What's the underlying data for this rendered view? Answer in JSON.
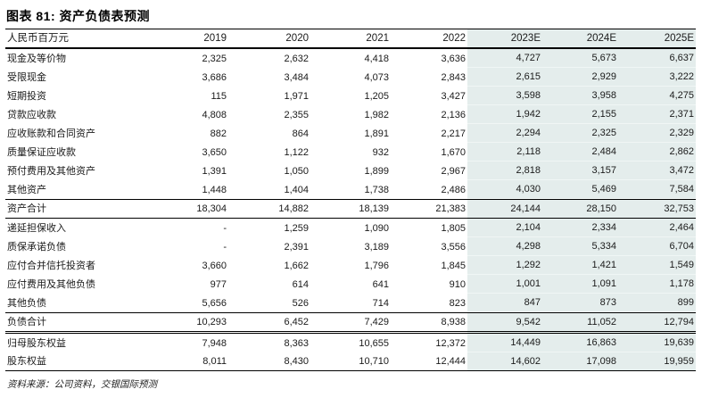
{
  "page": {
    "title": "图表 81: 资产负债表预测",
    "source": "资料来源：公司资料，交银国际预测"
  },
  "colors": {
    "forecast_highlight": "#e4edec",
    "text": "#1a1a1a",
    "rule": "#000000"
  },
  "chart_data": {
    "type": "table",
    "title": "图表 81: 资产负债表预测",
    "unit_label": "人民币百万元",
    "columns": [
      "2019",
      "2020",
      "2021",
      "2022",
      "2023E",
      "2024E",
      "2025E"
    ],
    "forecast_columns": [
      "2023E",
      "2024E",
      "2025E"
    ],
    "rows": [
      {
        "label": "现金及等价物",
        "kind": "item",
        "values": [
          "2,325",
          "2,632",
          "4,418",
          "3,636",
          "4,727",
          "5,673",
          "6,637"
        ]
      },
      {
        "label": "受限现金",
        "kind": "item",
        "values": [
          "3,686",
          "3,484",
          "4,073",
          "2,843",
          "2,615",
          "2,929",
          "3,222"
        ]
      },
      {
        "label": "短期投资",
        "kind": "item",
        "values": [
          "115",
          "1,971",
          "1,205",
          "3,427",
          "3,598",
          "3,958",
          "4,275"
        ]
      },
      {
        "label": "贷款应收款",
        "kind": "item",
        "values": [
          "4,808",
          "2,355",
          "1,982",
          "2,136",
          "1,942",
          "2,155",
          "2,371"
        ]
      },
      {
        "label": "应收账款和合同资产",
        "kind": "item",
        "values": [
          "882",
          "864",
          "1,891",
          "2,217",
          "2,294",
          "2,325",
          "2,329"
        ]
      },
      {
        "label": "质量保证应收款",
        "kind": "item",
        "values": [
          "3,650",
          "1,122",
          "932",
          "1,670",
          "2,118",
          "2,484",
          "2,862"
        ]
      },
      {
        "label": "预付费用及其他资产",
        "kind": "item",
        "values": [
          "1,391",
          "1,050",
          "1,899",
          "2,967",
          "2,818",
          "3,157",
          "3,472"
        ]
      },
      {
        "label": "其他资产",
        "kind": "item",
        "values": [
          "1,448",
          "1,404",
          "1,738",
          "2,486",
          "4,030",
          "5,469",
          "7,584"
        ]
      },
      {
        "label": "资产合计",
        "kind": "total",
        "values": [
          "18,304",
          "14,882",
          "18,139",
          "21,383",
          "24,144",
          "28,150",
          "32,753"
        ]
      },
      {
        "label": "递延担保收入",
        "kind": "item",
        "values": [
          "-",
          "1,259",
          "1,090",
          "1,805",
          "2,104",
          "2,334",
          "2,464"
        ]
      },
      {
        "label": "质保承诺负债",
        "kind": "item",
        "values": [
          "-",
          "2,391",
          "3,189",
          "3,556",
          "4,298",
          "5,334",
          "6,704"
        ]
      },
      {
        "label": "应付合并信托投资者",
        "kind": "item",
        "values": [
          "3,660",
          "1,662",
          "1,796",
          "1,845",
          "1,292",
          "1,421",
          "1,549"
        ]
      },
      {
        "label": "应付费用及其他负债",
        "kind": "item",
        "values": [
          "977",
          "614",
          "641",
          "910",
          "1,001",
          "1,091",
          "1,178"
        ]
      },
      {
        "label": "其他负债",
        "kind": "item",
        "values": [
          "5,656",
          "526",
          "714",
          "823",
          "847",
          "873",
          "899"
        ]
      },
      {
        "label": "负债合计",
        "kind": "total_double",
        "values": [
          "10,293",
          "6,452",
          "7,429",
          "8,938",
          "9,542",
          "11,052",
          "12,794"
        ]
      },
      {
        "label": "归母股东权益",
        "kind": "item",
        "values": [
          "7,948",
          "8,363",
          "10,655",
          "12,372",
          "14,449",
          "16,863",
          "19,639"
        ]
      },
      {
        "label": "股东权益",
        "kind": "item",
        "values": [
          "8,011",
          "8,430",
          "10,710",
          "12,444",
          "14,602",
          "17,098",
          "19,959"
        ]
      }
    ],
    "source": "资料来源：公司资料，交银国际预测"
  }
}
